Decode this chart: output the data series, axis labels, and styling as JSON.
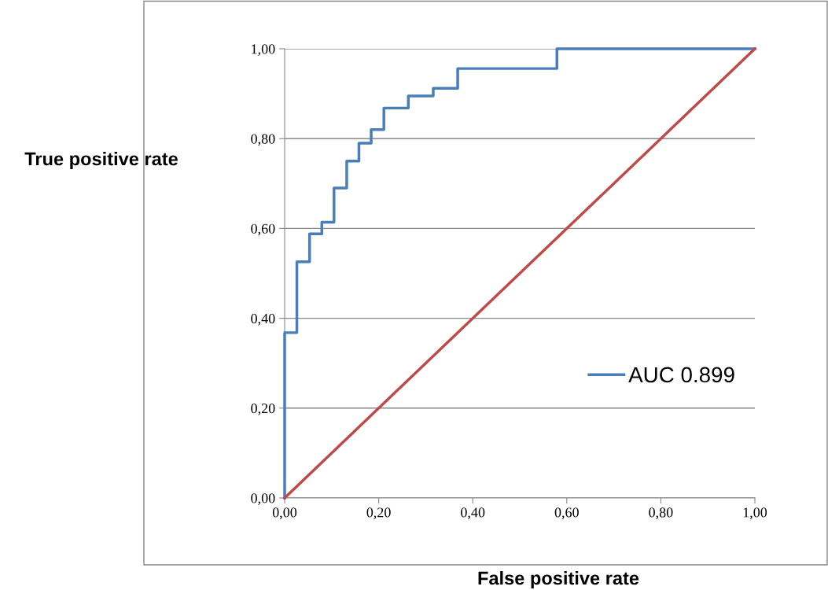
{
  "chart_data": {
    "type": "line",
    "xlabel": "False positive rate",
    "ylabel": "True positive rate",
    "xlim": [
      0,
      1
    ],
    "ylim": [
      0,
      1
    ],
    "xticks": [
      {
        "value": 0,
        "label": "0,00"
      },
      {
        "value": 0.2,
        "label": "0,20"
      },
      {
        "value": 0.4,
        "label": "0,40"
      },
      {
        "value": 0.6,
        "label": "0,60"
      },
      {
        "value": 0.8,
        "label": "0,80"
      },
      {
        "value": 1,
        "label": "1,00"
      }
    ],
    "yticks": [
      {
        "value": 0,
        "label": "0,00"
      },
      {
        "value": 0.2,
        "label": "0,20"
      },
      {
        "value": 0.4,
        "label": "0,40"
      },
      {
        "value": 0.6,
        "label": "0,60"
      },
      {
        "value": 0.8,
        "label": "0,80"
      },
      {
        "value": 1,
        "label": "1,00"
      }
    ],
    "grid": "y",
    "legend": "right",
    "marker": "none",
    "line_style": "solid",
    "series": [
      {
        "name": "AUC 0.899",
        "color": "#4a7ebb",
        "x": [
          0,
          0,
          0.026,
          0.026,
          0.053,
          0.053,
          0.079,
          0.079,
          0.105,
          0.105,
          0.132,
          0.132,
          0.158,
          0.158,
          0.184,
          0.184,
          0.211,
          0.211,
          0.263,
          0.263,
          0.316,
          0.316,
          0.368,
          0.368,
          0.579,
          0.579,
          1
        ],
        "values": [
          0,
          0.368,
          0.368,
          0.526,
          0.526,
          0.588,
          0.588,
          0.614,
          0.614,
          0.69,
          0.69,
          0.75,
          0.75,
          0.79,
          0.79,
          0.82,
          0.82,
          0.868,
          0.868,
          0.895,
          0.895,
          0.912,
          0.912,
          0.956,
          0.956,
          1,
          1
        ]
      },
      {
        "color": "#be4b48",
        "x": [
          0,
          1
        ],
        "values": [
          0,
          1
        ]
      }
    ]
  }
}
